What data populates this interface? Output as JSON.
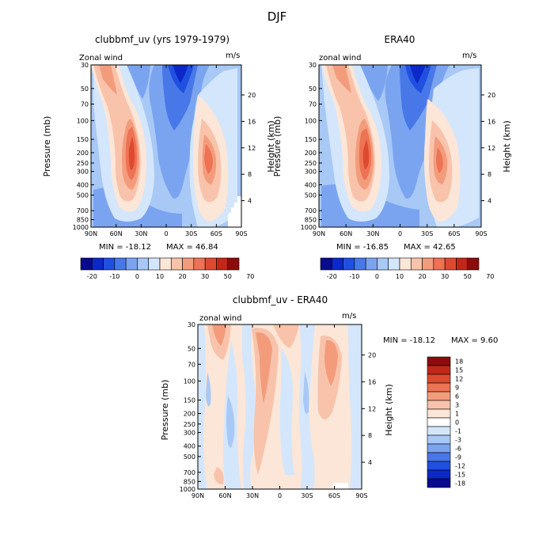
{
  "figure": {
    "title": "DJF"
  },
  "chart_data": [
    {
      "type": "heatmap",
      "title": "clubbmf_uv (yrs 1979-1979)",
      "subtitle_left": "Zonal wind",
      "units": "m/s",
      "xlabel": "",
      "ylabel": "Pressure (mb)",
      "ylabel_right": "Height (km)",
      "x_ticks": [
        "90N",
        "60N",
        "30N",
        "0",
        "30S",
        "60S",
        "90S"
      ],
      "y_ticks": [
        "30",
        "50",
        "70",
        "100",
        "150",
        "200",
        "250",
        "300",
        "400",
        "500",
        "700",
        "850",
        "1000"
      ],
      "y_right_ticks": [
        "20",
        "16",
        "12",
        "8",
        "4"
      ],
      "min_label": "MIN = -18.12",
      "max_label": "MAX = 46.84",
      "colorbar_levels": [
        "-20",
        "-10",
        "0",
        "10",
        "20",
        "30",
        "50",
        "70"
      ],
      "colorbar_colors": [
        "#0a0a8c",
        "#0c28c8",
        "#2050e0",
        "#4878e8",
        "#7aa4f0",
        "#a8c8f6",
        "#d4e6fb",
        "#fbe6d8",
        "#f8c3aa",
        "#f39c7c",
        "#ec7354",
        "#de4a30",
        "#c02818",
        "#8c0c0c"
      ]
    },
    {
      "type": "heatmap",
      "title": "ERA40",
      "subtitle_left": "zonal wind",
      "units": "m/s",
      "xlabel": "",
      "ylabel": "Pressure (mb)",
      "ylabel_right": "Height (km)",
      "x_ticks": [
        "90N",
        "60N",
        "30N",
        "0",
        "30S",
        "60S",
        "90S"
      ],
      "y_ticks": [
        "30",
        "50",
        "70",
        "100",
        "150",
        "200",
        "250",
        "300",
        "400",
        "500",
        "700",
        "850",
        "1000"
      ],
      "y_right_ticks": [
        "20",
        "16",
        "12",
        "8",
        "4"
      ],
      "min_label": "MIN = -16.85",
      "max_label": "MAX = 42.65",
      "colorbar_levels": [
        "-20",
        "-10",
        "0",
        "10",
        "20",
        "30",
        "50",
        "70"
      ],
      "colorbar_colors": [
        "#0a0a8c",
        "#0c28c8",
        "#2050e0",
        "#4878e8",
        "#7aa4f0",
        "#a8c8f6",
        "#d4e6fb",
        "#fbe6d8",
        "#f8c3aa",
        "#f39c7c",
        "#ec7354",
        "#de4a30",
        "#c02818",
        "#8c0c0c"
      ]
    },
    {
      "type": "heatmap",
      "title": "clubbmf_uv - ERA40",
      "subtitle_left": "zonal wind",
      "units": "m/s",
      "xlabel": "",
      "ylabel": "Pressure (mb)",
      "ylabel_right": "Height (km)",
      "x_ticks": [
        "90N",
        "60N",
        "30N",
        "0",
        "30S",
        "60S",
        "90S"
      ],
      "y_ticks": [
        "30",
        "50",
        "70",
        "100",
        "150",
        "200",
        "250",
        "300",
        "400",
        "500",
        "700",
        "850",
        "1000"
      ],
      "y_right_ticks": [
        "20",
        "16",
        "12",
        "8",
        "4"
      ],
      "min_label": "MIN = -18.12",
      "max_label": "MAX =   9.60",
      "colorbar_levels": [
        "18",
        "15",
        "12",
        "9",
        "6",
        "3",
        "1",
        "0",
        "-1",
        "-3",
        "-6",
        "-9",
        "-12",
        "-15",
        "-18"
      ],
      "colorbar_colors": [
        "#8c0c0c",
        "#c02818",
        "#de4a30",
        "#ec7354",
        "#f39c7c",
        "#f8c3aa",
        "#fbe6d8",
        "#ffffff",
        "#d4e6fb",
        "#a8c8f6",
        "#7aa4f0",
        "#4878e8",
        "#2050e0",
        "#0c28c8",
        "#0a0a8c"
      ]
    }
  ],
  "fills": {
    "panel1_background": "#a8c8f6",
    "panel2_background": "#a8c8f6",
    "diff_background": "#fbe6d8"
  }
}
